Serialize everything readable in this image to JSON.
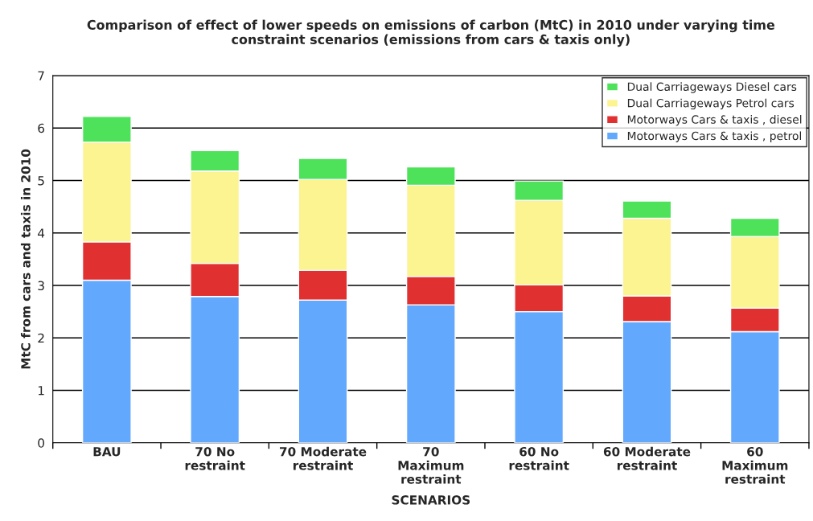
{
  "chart_data": {
    "type": "bar",
    "stacked": true,
    "title": "Comparison of effect of lower speeds on emissions of carbon (MtC) in 2010 under varying time constraint scenarios (emissions from cars & taxis only)",
    "xlabel": "SCENARIOS",
    "ylabel": "MtC from cars and taxis in 2010",
    "categories": [
      "BAU",
      "70 No\nrestraint",
      "70 Moderate\nrestraint",
      "70\nMaximum\nrestraint",
      "60 No\nrestraint",
      "60 Moderate\nrestraint",
      "60\nMaximum\nrestraint"
    ],
    "series": [
      {
        "name": "Motorways Cars & taxis , petrol",
        "color": "#62a8fc",
        "values": [
          3.1,
          2.79,
          2.72,
          2.63,
          2.5,
          2.31,
          2.12
        ]
      },
      {
        "name": "Motorways Cars & taxis , diesel",
        "color": "#e03030",
        "values": [
          0.73,
          0.63,
          0.57,
          0.54,
          0.51,
          0.49,
          0.45
        ]
      },
      {
        "name": "Dual Carriageways Petrol cars",
        "color": "#fcf391",
        "values": [
          1.9,
          1.76,
          1.73,
          1.74,
          1.61,
          1.48,
          1.36
        ]
      },
      {
        "name": "Dual Carriageways Diesel cars",
        "color": "#4ee25a",
        "values": [
          0.49,
          0.39,
          0.4,
          0.35,
          0.37,
          0.33,
          0.35
        ]
      }
    ],
    "ylim": [
      0,
      7
    ],
    "yticks": [
      0,
      1,
      2,
      3,
      4,
      5,
      6,
      7
    ],
    "grid": "y",
    "legend": "top right"
  }
}
